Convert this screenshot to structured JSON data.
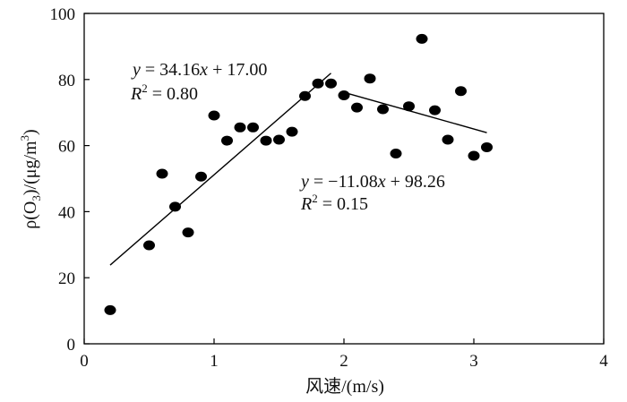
{
  "chart_data": {
    "type": "scatter",
    "xlabel": "风速/(m/s)",
    "ylabel": "ρ(O3)/(μg/m3)",
    "ylabel_parts": {
      "prefix": "ρ(O",
      "sub": "3",
      "middle": ")/(μg/m",
      "sup": "3",
      "suffix": ")"
    },
    "xlim": [
      0,
      4
    ],
    "ylim": [
      0,
      100
    ],
    "xticks": [
      0,
      1,
      2,
      3,
      4
    ],
    "yticks": [
      0,
      20,
      40,
      60,
      80,
      100
    ],
    "grid": false,
    "legend": "none",
    "points": [
      {
        "x": 0.2,
        "y": 10.2
      },
      {
        "x": 0.5,
        "y": 29.8
      },
      {
        "x": 0.6,
        "y": 51.5
      },
      {
        "x": 0.7,
        "y": 41.5
      },
      {
        "x": 0.8,
        "y": 33.7
      },
      {
        "x": 0.9,
        "y": 50.6
      },
      {
        "x": 1.0,
        "y": 69.1
      },
      {
        "x": 1.1,
        "y": 61.5
      },
      {
        "x": 1.2,
        "y": 65.5
      },
      {
        "x": 1.3,
        "y": 65.5
      },
      {
        "x": 1.4,
        "y": 61.5
      },
      {
        "x": 1.5,
        "y": 61.8
      },
      {
        "x": 1.6,
        "y": 64.2
      },
      {
        "x": 1.7,
        "y": 75.0
      },
      {
        "x": 1.8,
        "y": 78.8
      },
      {
        "x": 1.9,
        "y": 78.8
      },
      {
        "x": 2.0,
        "y": 75.2
      },
      {
        "x": 2.1,
        "y": 71.5
      },
      {
        "x": 2.2,
        "y": 80.3
      },
      {
        "x": 2.3,
        "y": 71.0
      },
      {
        "x": 2.4,
        "y": 57.6
      },
      {
        "x": 2.5,
        "y": 71.9
      },
      {
        "x": 2.6,
        "y": 92.3
      },
      {
        "x": 2.7,
        "y": 70.7
      },
      {
        "x": 2.8,
        "y": 61.8
      },
      {
        "x": 2.9,
        "y": 76.5
      },
      {
        "x": 3.0,
        "y": 56.9
      },
      {
        "x": 3.1,
        "y": 59.5
      }
    ],
    "fit_lines": [
      {
        "slope": 34.16,
        "intercept": 17.0,
        "x_range": [
          0.2,
          1.9
        ],
        "equation_parts": {
          "y": "y",
          "rhs": " = 34.16",
          "x": "x",
          "tail": " + 17.00"
        },
        "r2_parts": {
          "r": "R",
          "sup": "2",
          "rest": " = 0.80"
        }
      },
      {
        "slope": -11.08,
        "intercept": 98.26,
        "x_range": [
          2.0,
          3.1
        ],
        "equation_parts": {
          "y": "y",
          "rhs": " = −11.08",
          "x": "x",
          "tail": " + 98.26"
        },
        "r2_parts": {
          "r": "R",
          "sup": "2",
          "rest": " = 0.15"
        }
      }
    ],
    "colors": {
      "marker": "#000000",
      "line": "#000000",
      "axis": "#000000"
    }
  }
}
